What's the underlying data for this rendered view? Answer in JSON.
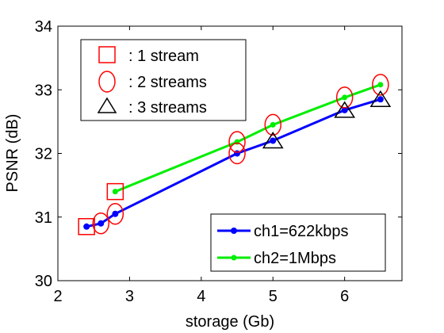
{
  "chart_data": {
    "type": "line",
    "title": "",
    "xlabel": "storage (Gb)",
    "ylabel": "PSNR (dB)",
    "xlim": [
      2,
      6.8
    ],
    "ylim": [
      30,
      34
    ],
    "xticks": [
      "2",
      "3",
      "4",
      "5",
      "6"
    ],
    "yticks": [
      "30",
      "31",
      "32",
      "33",
      "34"
    ],
    "grid": false,
    "series": [
      {
        "name": "ch1=622kbps",
        "color": "#0000ff",
        "marker": "dot",
        "points": [
          [
            2.4,
            30.85
          ],
          [
            2.6,
            30.9
          ],
          [
            2.8,
            31.05
          ],
          [
            4.5,
            32.0
          ],
          [
            5.0,
            32.2
          ],
          [
            6.0,
            32.68
          ],
          [
            6.5,
            32.85
          ]
        ]
      },
      {
        "name": "ch2=1Mbps",
        "color": "#00ee00",
        "marker": "dot",
        "points": [
          [
            2.8,
            31.4
          ],
          [
            4.5,
            32.18
          ],
          [
            5.0,
            32.45
          ],
          [
            6.0,
            32.88
          ],
          [
            6.5,
            33.08
          ]
        ]
      }
    ],
    "stream_markers": [
      {
        "name": ": 1 stream",
        "shape": "square",
        "color": "#ff0000",
        "points": [
          [
            2.4,
            30.85
          ],
          [
            2.8,
            31.4
          ]
        ]
      },
      {
        "name": ": 2 streams",
        "shape": "circle",
        "color": "#ff0000",
        "points": [
          [
            2.6,
            30.9
          ],
          [
            2.8,
            31.05
          ],
          [
            4.5,
            32.0
          ],
          [
            4.5,
            32.18
          ],
          [
            5.0,
            32.45
          ],
          [
            6.0,
            32.88
          ],
          [
            6.5,
            33.08
          ]
        ]
      },
      {
        "name": ": 3 streams",
        "shape": "triangle",
        "color": "#000000",
        "points": [
          [
            5.0,
            32.2
          ],
          [
            6.0,
            32.68
          ],
          [
            6.5,
            32.85
          ]
        ]
      }
    ],
    "legends": {
      "markers": "top-left",
      "series": "bottom-right"
    }
  }
}
